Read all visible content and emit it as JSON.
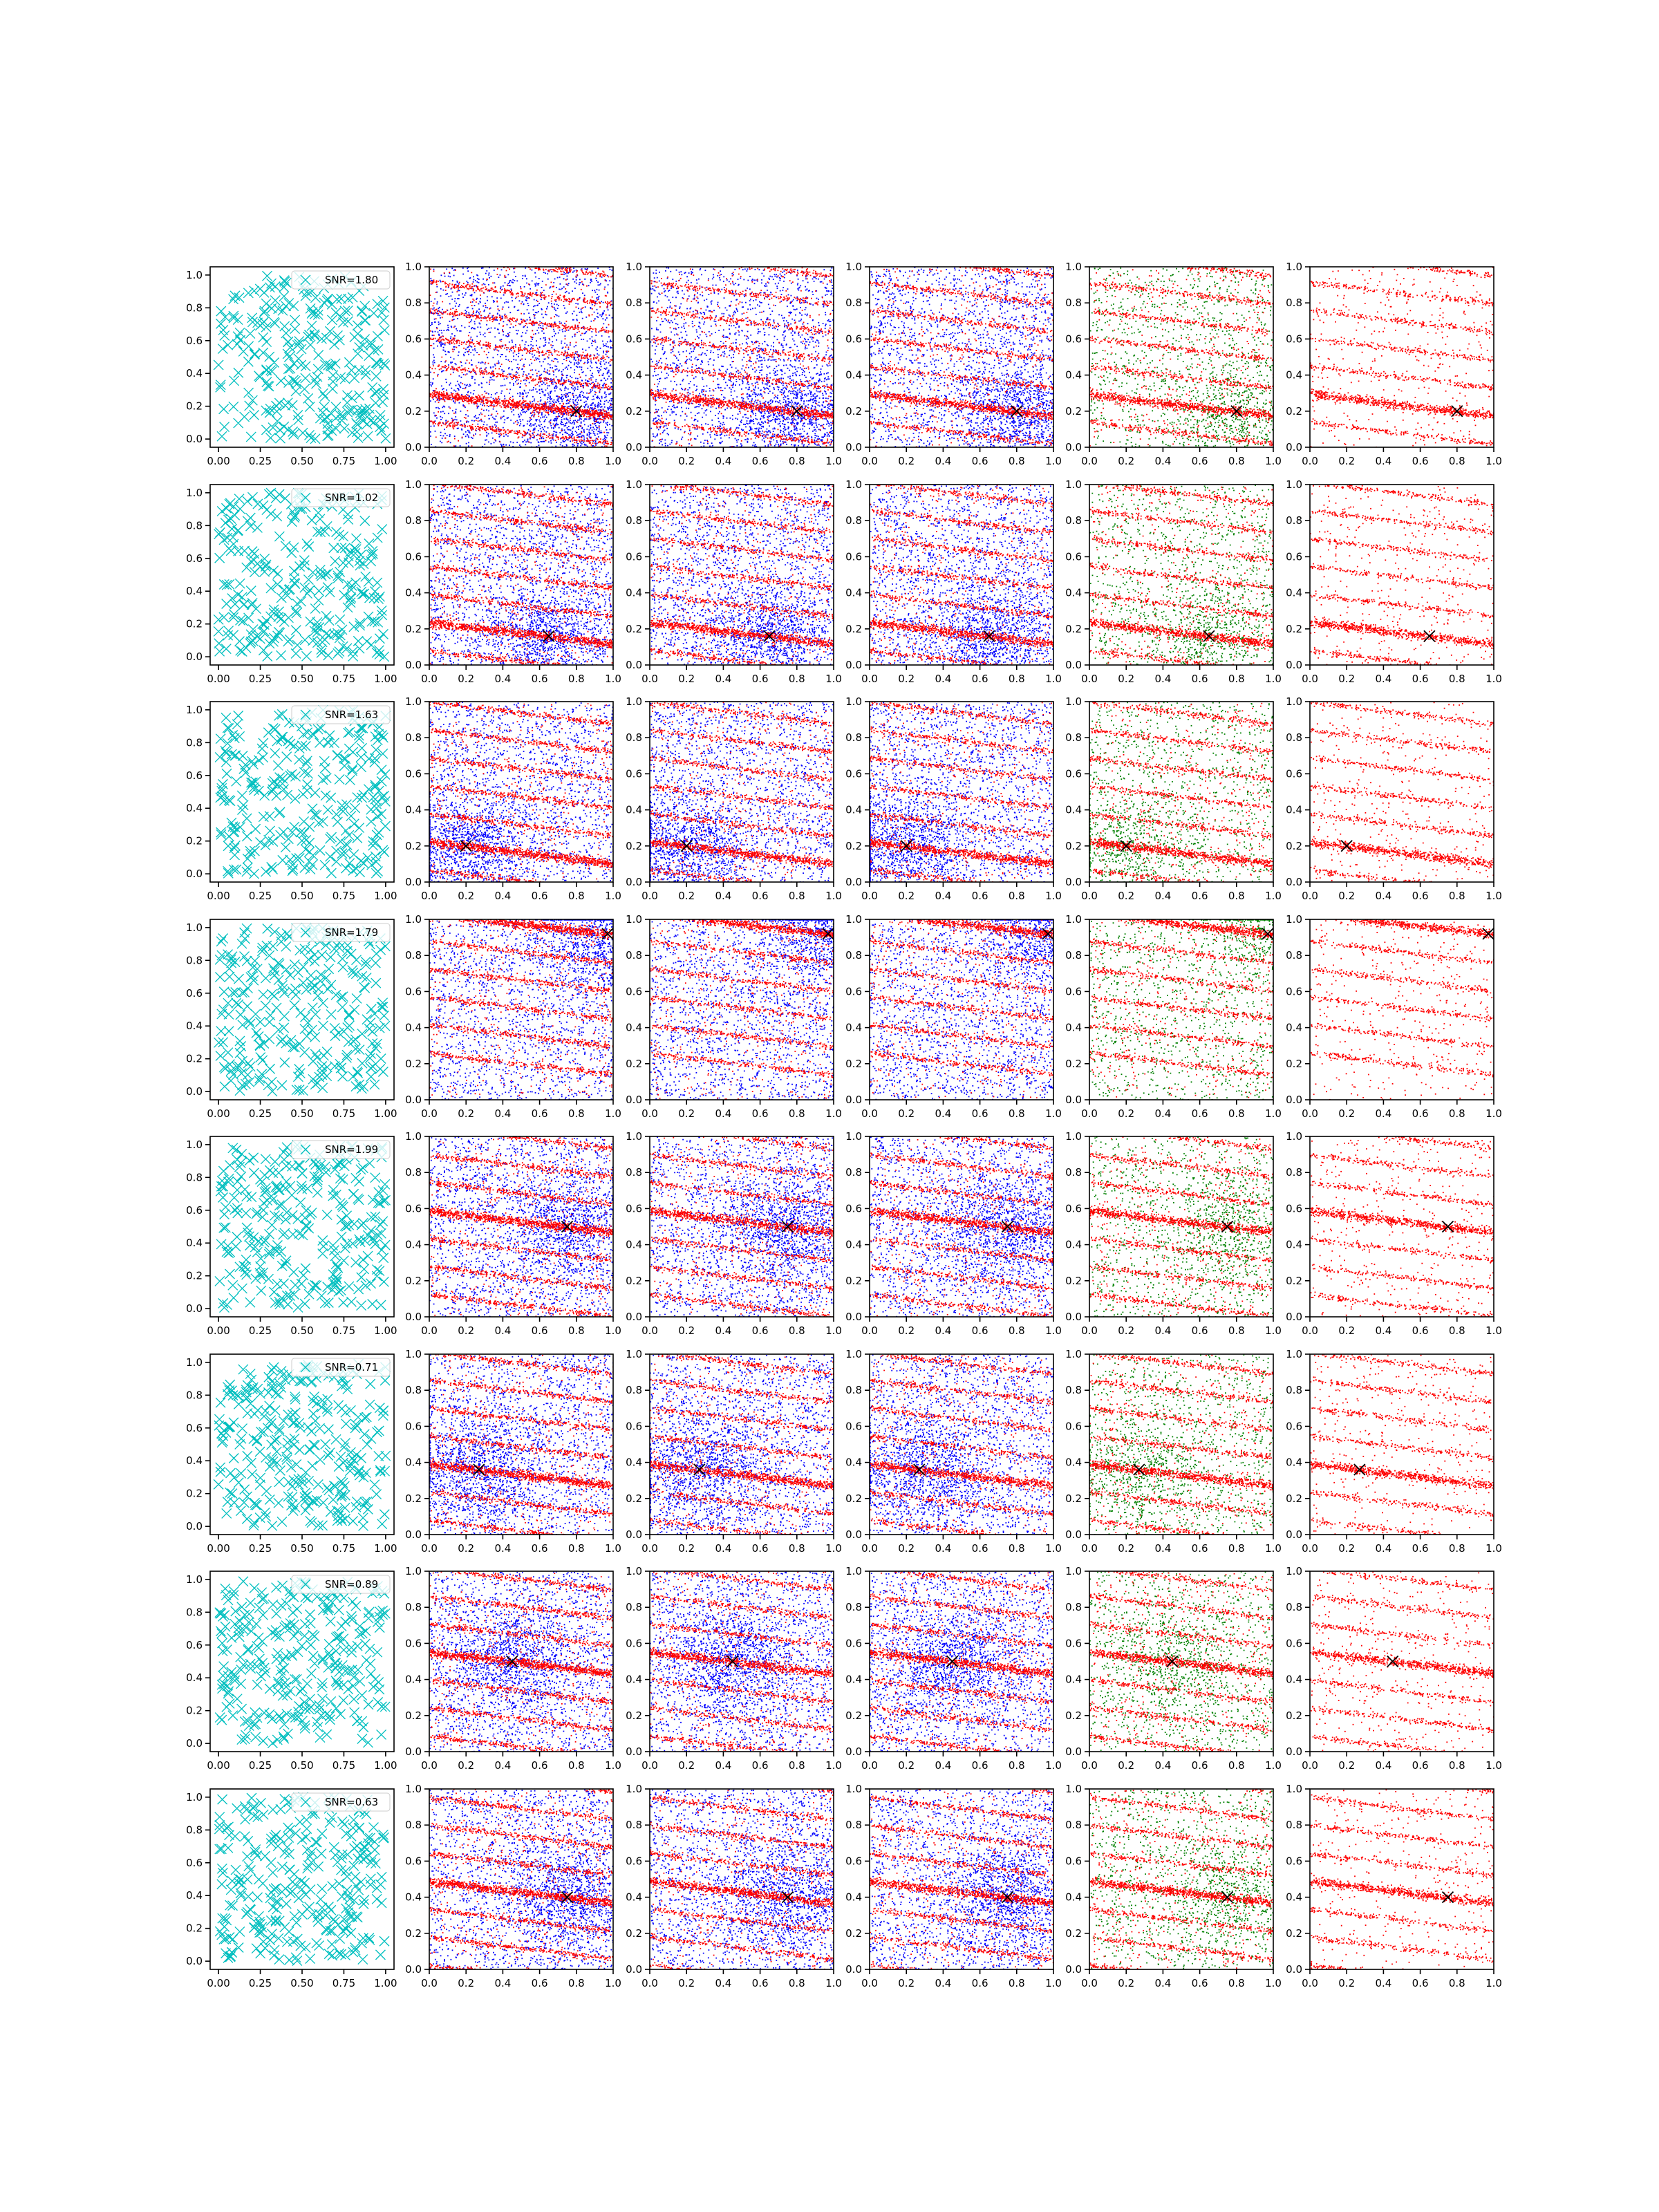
{
  "figure": {
    "rows": 8,
    "cols": 6,
    "colors": {
      "cyan": "#00bfbf",
      "blue": "#0000ff",
      "red": "#ff0000",
      "green": "#008000",
      "black": "#000000"
    },
    "tick_labels": {
      "first_col_x": [
        "0.00",
        "0.25",
        "0.50",
        "0.75",
        "1.00"
      ],
      "first_col_y": [
        "0.0",
        "0.2",
        "0.4",
        "0.6",
        "0.8",
        "1.0"
      ],
      "other_x": [
        "0.0",
        "0.2",
        "0.4",
        "0.6",
        "0.8",
        "1.0"
      ],
      "other_y": [
        "0.0",
        "0.2",
        "0.4",
        "0.6",
        "0.8",
        "1.0"
      ]
    }
  },
  "chart_data": [
    {
      "row": 1,
      "type": "scatter",
      "legend": "SNR=1.80",
      "target": [
        0.8,
        0.2
      ],
      "marker": "x",
      "columns": [
        "cyan",
        "blue+red",
        "blue+red",
        "blue+red",
        "green+red",
        "red"
      ]
    },
    {
      "row": 2,
      "type": "scatter",
      "legend": "SNR=1.02",
      "target": [
        0.65,
        0.16
      ],
      "marker": "x",
      "columns": [
        "cyan",
        "blue+red",
        "blue+red",
        "blue+red",
        "green+red",
        "red"
      ]
    },
    {
      "row": 3,
      "type": "scatter",
      "legend": "SNR=1.63",
      "target": [
        0.2,
        0.2
      ],
      "marker": "x",
      "columns": [
        "cyan",
        "blue+red",
        "blue+red",
        "blue+red",
        "green+red",
        "red"
      ]
    },
    {
      "row": 4,
      "type": "scatter",
      "legend": "SNR=1.79",
      "target": [
        0.97,
        0.92
      ],
      "marker": "x",
      "columns": [
        "cyan",
        "blue+red",
        "blue+red",
        "blue+red",
        "green+red",
        "red"
      ]
    },
    {
      "row": 5,
      "type": "scatter",
      "legend": "SNR=1.99",
      "target": [
        0.75,
        0.5
      ],
      "marker": "x",
      "columns": [
        "cyan",
        "blue+red",
        "blue+red",
        "blue+red",
        "green+red",
        "red"
      ]
    },
    {
      "row": 6,
      "type": "scatter",
      "legend": "SNR=0.71",
      "target": [
        0.27,
        0.36
      ],
      "marker": "x",
      "columns": [
        "cyan",
        "blue+red",
        "blue+red",
        "blue+red",
        "green+red",
        "red"
      ]
    },
    {
      "row": 7,
      "type": "scatter",
      "legend": "SNR=0.89",
      "target": [
        0.45,
        0.5
      ],
      "marker": "x",
      "columns": [
        "cyan",
        "blue+red",
        "blue+red",
        "blue+red",
        "green+red",
        "red"
      ]
    },
    {
      "row": 8,
      "type": "scatter",
      "legend": "SNR=0.63",
      "target": [
        0.75,
        0.4
      ],
      "marker": "x",
      "columns": [
        "cyan",
        "blue+red",
        "blue+red",
        "blue+red",
        "green+red",
        "red"
      ]
    }
  ]
}
